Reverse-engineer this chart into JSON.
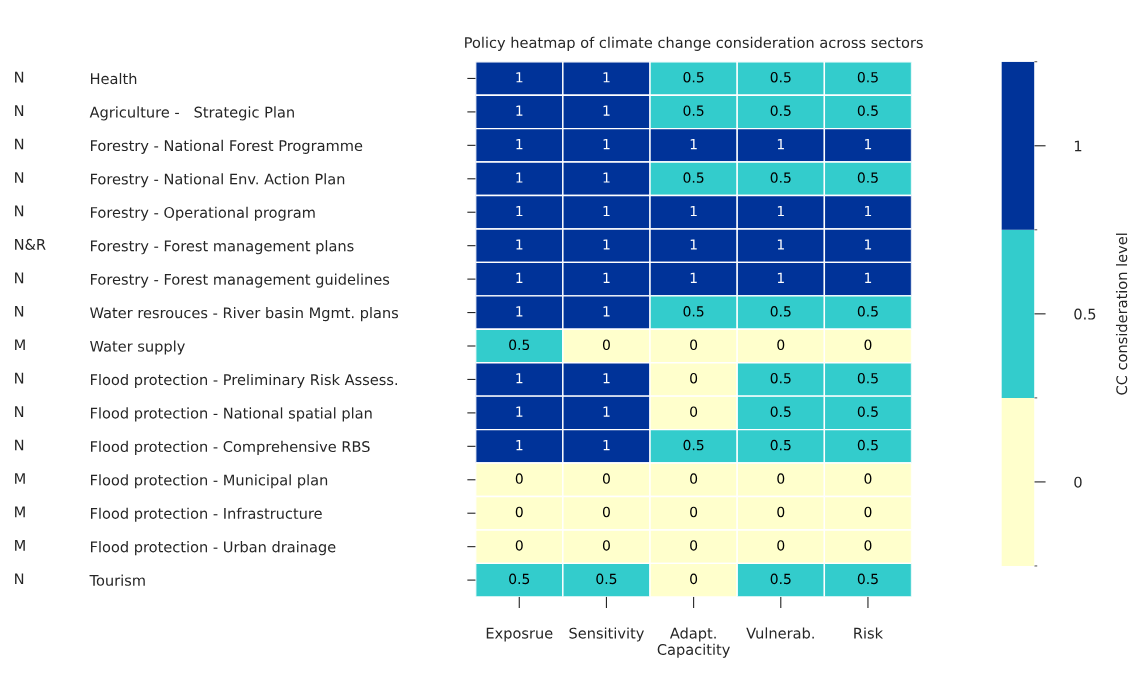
{
  "chart_data": {
    "type": "heatmap",
    "title": "Policy heatmap of climate change consideration across sectors",
    "categories": [
      "Exposrue",
      "Sensitivity",
      "Adapt.\nCapacitity",
      "Vulnerab.",
      "Risk"
    ],
    "y_categories": [
      "Health",
      "Agriculture -   Strategic Plan",
      "Forestry - National Forest Programme",
      "Forestry - National Env. Action Plan",
      "Forestry - Operational program",
      "Forestry - Forest management plans",
      "Forestry - Forest management guidelines",
      "Water resrouces - River basin Mgmt. plans",
      "Water supply",
      "Flood protection - Preliminary Risk Assess.",
      "Flood protection - National spatial plan",
      "Flood protection - Comprehensive RBS",
      "Flood protection - Municipal plan",
      "Flood protection - Infrastructure",
      "Flood protection - Urban drainage",
      "Tourism"
    ],
    "y2_categories": [
      "N",
      "N",
      "N",
      "N",
      "N",
      "N&R",
      "N",
      "N",
      "M",
      "N",
      "N",
      "N",
      "M",
      "M",
      "M",
      "N"
    ],
    "cells": [
      [
        1,
        1,
        0.5,
        0.5,
        0.5
      ],
      [
        1,
        1,
        0.5,
        0.5,
        0.5
      ],
      [
        1,
        1,
        1,
        1,
        1
      ],
      [
        1,
        1,
        0.5,
        0.5,
        0.5
      ],
      [
        1,
        1,
        1,
        1,
        1
      ],
      [
        1,
        1,
        1,
        1,
        1
      ],
      [
        1,
        1,
        1,
        1,
        1
      ],
      [
        1,
        1,
        0.5,
        0.5,
        0.5
      ],
      [
        0.5,
        0,
        0,
        0,
        0
      ],
      [
        1,
        1,
        0,
        0.5,
        0.5
      ],
      [
        1,
        1,
        0,
        0.5,
        0.5
      ],
      [
        1,
        1,
        0.5,
        0.5,
        0.5
      ],
      [
        0,
        0,
        0,
        0,
        0
      ],
      [
        0,
        0,
        0,
        0,
        0
      ],
      [
        0,
        0,
        0,
        0,
        0
      ],
      [
        0.5,
        0.5,
        0,
        0.5,
        0.5
      ]
    ],
    "colors": [
      "#ffffcc",
      "#33cccc",
      "#003399"
    ],
    "clim": [
      -0.25,
      1.25
    ],
    "cticks": [
      0,
      0.5,
      1
    ],
    "clabel": "CC consideration level",
    "data_labels": true
  }
}
